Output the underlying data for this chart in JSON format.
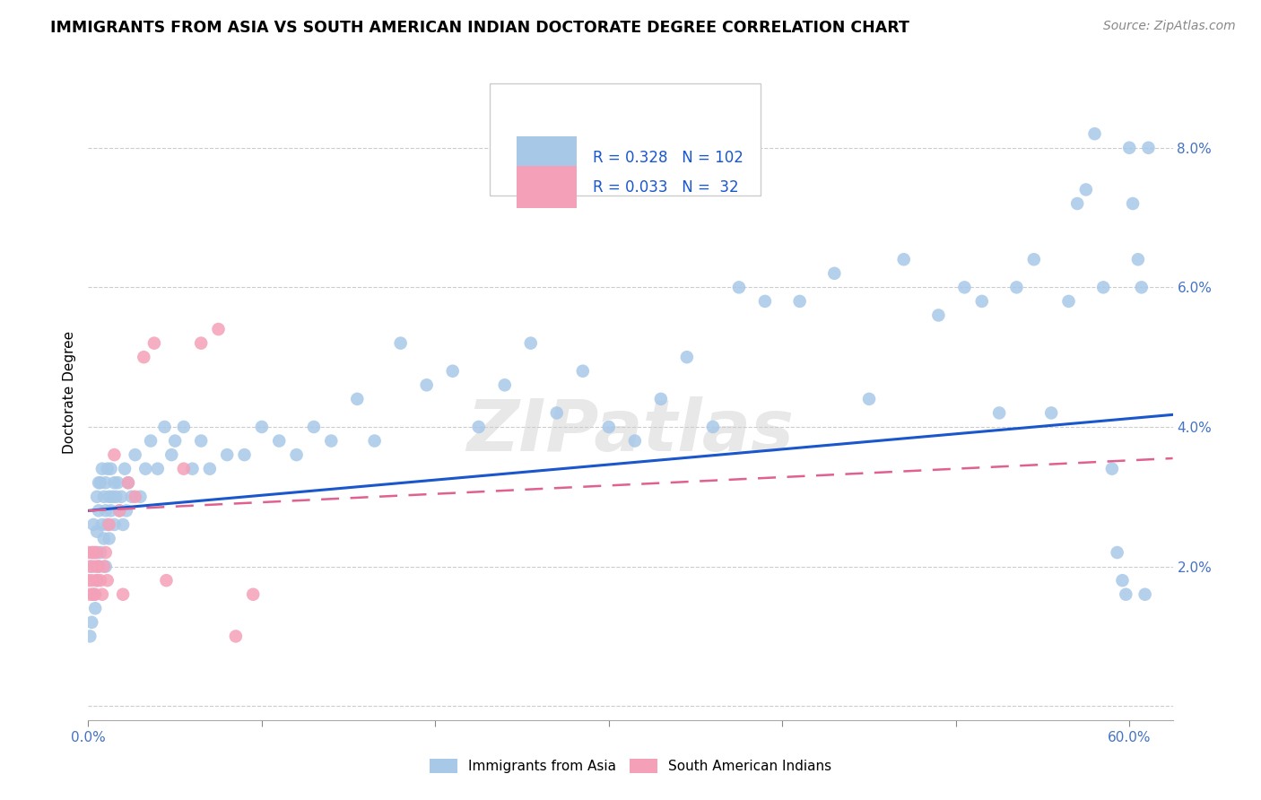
{
  "title": "IMMIGRANTS FROM ASIA VS SOUTH AMERICAN INDIAN DOCTORATE DEGREE CORRELATION CHART",
  "source": "Source: ZipAtlas.com",
  "ylabel": "Doctorate Degree",
  "yticks": [
    0.0,
    0.02,
    0.04,
    0.06,
    0.08
  ],
  "ytick_labels": [
    "",
    "2.0%",
    "4.0%",
    "6.0%",
    "8.0%"
  ],
  "xticks": [
    0.0,
    0.1,
    0.2,
    0.3,
    0.4,
    0.5,
    0.6
  ],
  "xtick_labels": [
    "0.0%",
    "",
    "",
    "",
    "",
    "",
    "60.0%"
  ],
  "xlim": [
    0.0,
    0.625
  ],
  "ylim": [
    -0.002,
    0.092
  ],
  "legend_R_blue": "0.328",
  "legend_N_blue": "102",
  "legend_R_pink": "0.033",
  "legend_N_pink": " 32",
  "color_blue": "#a8c8e8",
  "color_pink": "#f4a0b8",
  "line_blue": "#1a56cc",
  "line_pink": "#e06090",
  "watermark": "ZIPatlas",
  "blue_intercept": 0.028,
  "blue_slope": 0.022,
  "pink_intercept": 0.028,
  "pink_slope": 0.012,
  "blue_x": [
    0.001,
    0.002,
    0.002,
    0.003,
    0.003,
    0.004,
    0.004,
    0.005,
    0.005,
    0.005,
    0.006,
    0.006,
    0.006,
    0.007,
    0.007,
    0.008,
    0.008,
    0.009,
    0.009,
    0.01,
    0.01,
    0.01,
    0.011,
    0.011,
    0.012,
    0.012,
    0.013,
    0.013,
    0.014,
    0.015,
    0.015,
    0.016,
    0.017,
    0.018,
    0.019,
    0.02,
    0.021,
    0.022,
    0.023,
    0.025,
    0.027,
    0.03,
    0.033,
    0.036,
    0.04,
    0.044,
    0.048,
    0.05,
    0.055,
    0.06,
    0.065,
    0.07,
    0.08,
    0.09,
    0.1,
    0.11,
    0.12,
    0.13,
    0.14,
    0.155,
    0.165,
    0.18,
    0.195,
    0.21,
    0.225,
    0.24,
    0.255,
    0.27,
    0.285,
    0.3,
    0.315,
    0.33,
    0.345,
    0.36,
    0.375,
    0.39,
    0.41,
    0.43,
    0.45,
    0.47,
    0.49,
    0.505,
    0.515,
    0.525,
    0.535,
    0.545,
    0.555,
    0.565,
    0.57,
    0.575,
    0.58,
    0.585,
    0.59,
    0.593,
    0.596,
    0.598,
    0.6,
    0.602,
    0.605,
    0.607,
    0.609,
    0.611
  ],
  "blue_y": [
    0.01,
    0.012,
    0.02,
    0.016,
    0.026,
    0.014,
    0.022,
    0.018,
    0.025,
    0.03,
    0.02,
    0.028,
    0.032,
    0.022,
    0.032,
    0.026,
    0.034,
    0.024,
    0.03,
    0.02,
    0.028,
    0.032,
    0.026,
    0.034,
    0.024,
    0.03,
    0.028,
    0.034,
    0.03,
    0.026,
    0.032,
    0.03,
    0.032,
    0.028,
    0.03,
    0.026,
    0.034,
    0.028,
    0.032,
    0.03,
    0.036,
    0.03,
    0.034,
    0.038,
    0.034,
    0.04,
    0.036,
    0.038,
    0.04,
    0.034,
    0.038,
    0.034,
    0.036,
    0.036,
    0.04,
    0.038,
    0.036,
    0.04,
    0.038,
    0.044,
    0.038,
    0.052,
    0.046,
    0.048,
    0.04,
    0.046,
    0.052,
    0.042,
    0.048,
    0.04,
    0.038,
    0.044,
    0.05,
    0.04,
    0.06,
    0.058,
    0.058,
    0.062,
    0.044,
    0.064,
    0.056,
    0.06,
    0.058,
    0.042,
    0.06,
    0.064,
    0.042,
    0.058,
    0.072,
    0.074,
    0.082,
    0.06,
    0.034,
    0.022,
    0.018,
    0.016,
    0.08,
    0.072,
    0.064,
    0.06,
    0.016,
    0.08
  ],
  "pink_x": [
    0.0,
    0.0,
    0.001,
    0.001,
    0.002,
    0.002,
    0.003,
    0.003,
    0.004,
    0.004,
    0.005,
    0.005,
    0.006,
    0.007,
    0.008,
    0.009,
    0.01,
    0.011,
    0.012,
    0.015,
    0.018,
    0.02,
    0.023,
    0.027,
    0.032,
    0.038,
    0.045,
    0.055,
    0.065,
    0.075,
    0.085,
    0.095
  ],
  "pink_y": [
    0.022,
    0.018,
    0.02,
    0.016,
    0.022,
    0.018,
    0.016,
    0.022,
    0.02,
    0.016,
    0.018,
    0.022,
    0.02,
    0.018,
    0.016,
    0.02,
    0.022,
    0.018,
    0.026,
    0.036,
    0.028,
    0.016,
    0.032,
    0.03,
    0.05,
    0.052,
    0.018,
    0.034,
    0.052,
    0.054,
    0.01,
    0.016
  ]
}
